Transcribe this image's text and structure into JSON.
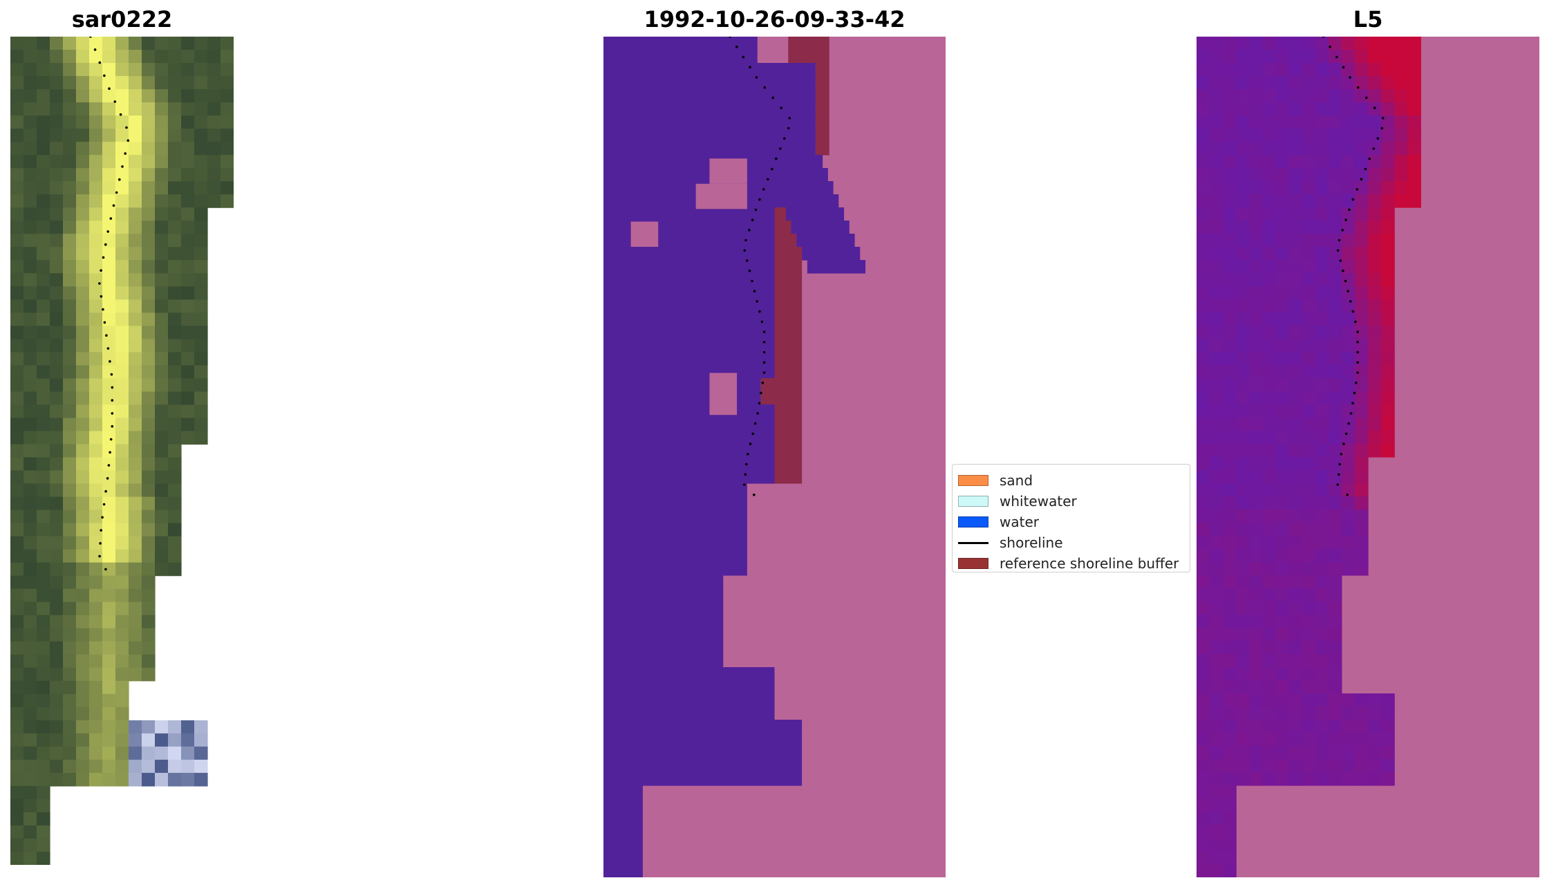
{
  "panels": [
    {
      "title": "sar0222"
    },
    {
      "title": "1992-10-26-09-33-42"
    },
    {
      "title": "L5"
    }
  ],
  "legend": {
    "items": [
      {
        "label": "sand",
        "kind": "patch",
        "color": "#fd8d46"
      },
      {
        "label": "whitewater",
        "kind": "patch",
        "color": "#cdf9f9"
      },
      {
        "label": "water",
        "kind": "patch",
        "color": "#0a5afa"
      },
      {
        "label": "shoreline",
        "kind": "line",
        "color": "#000000"
      },
      {
        "label": "reference shoreline buffer",
        "kind": "patch",
        "color": "#993333"
      }
    ]
  },
  "colors": {
    "water_class": "#52229a",
    "land_class": "#ba6597",
    "buffer": "#8c2b4a",
    "rgb_dark": "#354a31",
    "rgb_bright": "#f4f572",
    "index_low": "#6a1aa5",
    "index_high": "#c8083a"
  }
}
